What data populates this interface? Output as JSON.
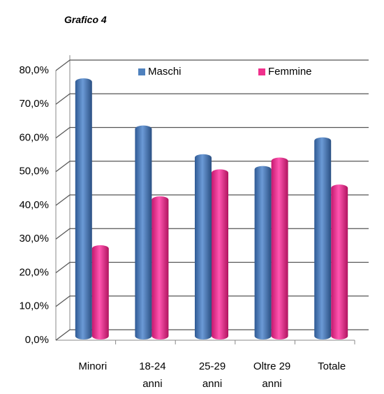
{
  "chart_data": {
    "type": "bar",
    "title": "Grafico 4",
    "categories": [
      "Minori",
      "18-24 anni",
      "25-29 anni",
      "Oltre 29 anni",
      "Totale"
    ],
    "series": [
      {
        "name": "Maschi",
        "color": "#4f81bd",
        "values": [
          75,
          61,
          52.5,
          49,
          57.5
        ]
      },
      {
        "name": "Femmine",
        "color": "#f0308c",
        "values": [
          25.5,
          40,
          48,
          51.5,
          43.5
        ]
      }
    ],
    "ylim": [
      0,
      80
    ],
    "yticks": [
      {
        "value": 0,
        "label": "0,0%"
      },
      {
        "value": 10,
        "label": "10,0%"
      },
      {
        "value": 20,
        "label": "20,0%"
      },
      {
        "value": 30,
        "label": "30,0%"
      },
      {
        "value": 40,
        "label": "40,0%"
      },
      {
        "value": 50,
        "label": "50,0%"
      },
      {
        "value": 60,
        "label": "60,0%"
      },
      {
        "value": 70,
        "label": "70,0%"
      },
      {
        "value": 80,
        "label": "80,0%"
      }
    ],
    "grid": true,
    "legend": "top"
  }
}
